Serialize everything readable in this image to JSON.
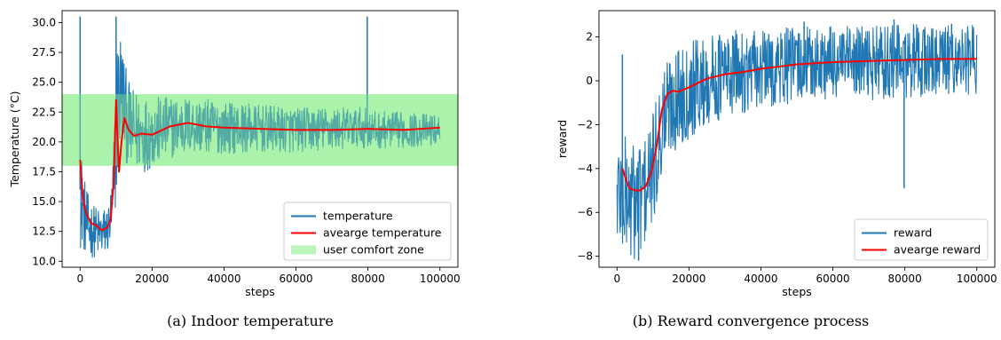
{
  "chart_data": [
    {
      "type": "line",
      "caption": "(a) Indoor temperature",
      "xlabel": "steps",
      "ylabel": "Temperature (°C)",
      "xlim": [
        -5000,
        105000
      ],
      "ylim": [
        9.5,
        31.0
      ],
      "xticks": [
        0,
        20000,
        40000,
        60000,
        80000,
        100000
      ],
      "xtick_labels": [
        "0",
        "20000",
        "40000",
        "60000",
        "80000",
        "100000"
      ],
      "yticks": [
        10.0,
        12.5,
        15.0,
        17.5,
        20.0,
        22.5,
        25.0,
        27.5,
        30.0
      ],
      "ytick_labels": [
        "10.0",
        "12.5",
        "15.0",
        "17.5",
        "20.0",
        "22.5",
        "25.0",
        "27.5",
        "30.0"
      ],
      "band": {
        "name": "user comfort zone",
        "ymin": 18.0,
        "ymax": 24.0,
        "color": "#90ee90"
      },
      "legend_position": "lower-right",
      "series": [
        {
          "name": "temperature",
          "color": "#1f77b4",
          "x": [
            0,
            700,
            1500,
            2500,
            4000,
            6000,
            8000,
            9000,
            9800,
            10500,
            11500,
            12500,
            14000,
            16000,
            18000,
            20000,
            25000,
            30000,
            40000,
            50000,
            60000,
            70000,
            79500,
            80500,
            90000,
            100000
          ],
          "center": [
            16.0,
            14.5,
            13.5,
            12.8,
            12.5,
            12.3,
            12.8,
            14.5,
            19.0,
            23.5,
            24.5,
            22.5,
            21.0,
            20.8,
            20.7,
            20.8,
            21.2,
            21.4,
            21.2,
            21.1,
            21.0,
            21.1,
            21.2,
            21.0,
            21.0,
            21.0
          ],
          "half_range": [
            5.0,
            3.5,
            3.0,
            2.5,
            2.2,
            2.0,
            2.2,
            3.0,
            5.5,
            6.5,
            5.0,
            4.0,
            3.6,
            3.4,
            3.2,
            3.0,
            2.6,
            2.4,
            2.2,
            2.0,
            1.9,
            1.8,
            1.7,
            1.6,
            1.5,
            1.3
          ],
          "spikes": [
            [
              0,
              30.5
            ],
            [
              500,
              13.0
            ],
            [
              10000,
              30.5
            ],
            [
              79800,
              30.5
            ]
          ]
        },
        {
          "name": "avearge temperature",
          "color": "#ff0000",
          "x": [
            0,
            600,
            1200,
            2000,
            3000,
            4500,
            6000,
            7500,
            8500,
            9300,
            10000,
            10800,
            11500,
            12300,
            13500,
            15000,
            17000,
            20000,
            25000,
            30000,
            35000,
            40000,
            50000,
            60000,
            70000,
            80000,
            90000,
            100000
          ],
          "y": [
            18.5,
            16.0,
            14.5,
            13.8,
            13.2,
            13.0,
            12.6,
            12.8,
            13.5,
            16.5,
            23.5,
            17.5,
            20.0,
            22.0,
            21.0,
            20.5,
            20.7,
            20.6,
            21.3,
            21.6,
            21.3,
            21.2,
            21.1,
            21.0,
            21.0,
            21.1,
            21.0,
            21.2
          ]
        }
      ]
    },
    {
      "type": "line",
      "caption": "(b) Reward convergence process",
      "xlabel": "steps",
      "ylabel": "reward",
      "xlim": [
        -5000,
        105000
      ],
      "ylim": [
        -8.5,
        3.2
      ],
      "xticks": [
        0,
        20000,
        40000,
        60000,
        80000,
        100000
      ],
      "xtick_labels": [
        "0",
        "20000",
        "40000",
        "60000",
        "80000",
        "100000"
      ],
      "yticks": [
        -8,
        -6,
        -4,
        -2,
        0,
        2
      ],
      "ytick_labels": [
        "−8",
        "−6",
        "−4",
        "−2",
        "0",
        "2"
      ],
      "legend_position": "lower-right",
      "series": [
        {
          "name": "reward",
          "color": "#1f77b4",
          "x": [
            0,
            1500,
            3000,
            4500,
            6000,
            7500,
            9000,
            10500,
            12000,
            13500,
            15000,
            18000,
            22000,
            26000,
            30000,
            35000,
            40000,
            50000,
            60000,
            70000,
            80000,
            90000,
            100000
          ],
          "center": [
            -5.0,
            -5.2,
            -5.4,
            -5.5,
            -5.4,
            -5.1,
            -4.6,
            -3.8,
            -2.3,
            -1.4,
            -1.0,
            -0.6,
            -0.2,
            0.0,
            0.3,
            0.4,
            0.5,
            0.7,
            0.8,
            0.8,
            0.9,
            0.9,
            1.0
          ],
          "half_range": [
            2.8,
            2.8,
            2.8,
            2.8,
            2.8,
            2.7,
            2.6,
            2.6,
            2.6,
            2.5,
            2.4,
            2.3,
            2.2,
            2.1,
            2.0,
            1.9,
            1.8,
            1.8,
            1.7,
            1.7,
            1.7,
            1.6,
            1.6
          ],
          "spikes": [
            [
              1500,
              1.2
            ],
            [
              6000,
              -8.2
            ],
            [
              79800,
              -4.9
            ],
            [
              80000,
              1.9
            ],
            [
              52000,
              2.7
            ],
            [
              77000,
              2.8
            ],
            [
              93000,
              2.6
            ]
          ]
        },
        {
          "name": "avearge reward",
          "color": "#ff0000",
          "x": [
            1500,
            2500,
            3500,
            5000,
            6500,
            8000,
            9500,
            11000,
            12500,
            14000,
            15500,
            17000,
            20000,
            25000,
            30000,
            35000,
            40000,
            50000,
            60000,
            70000,
            80000,
            90000,
            100000
          ],
          "y": [
            -4.0,
            -4.5,
            -4.9,
            -5.0,
            -5.0,
            -4.8,
            -4.2,
            -3.0,
            -1.3,
            -0.6,
            -0.45,
            -0.5,
            -0.3,
            0.1,
            0.3,
            0.4,
            0.55,
            0.75,
            0.85,
            0.9,
            0.95,
            1.0,
            1.0
          ]
        }
      ]
    }
  ]
}
